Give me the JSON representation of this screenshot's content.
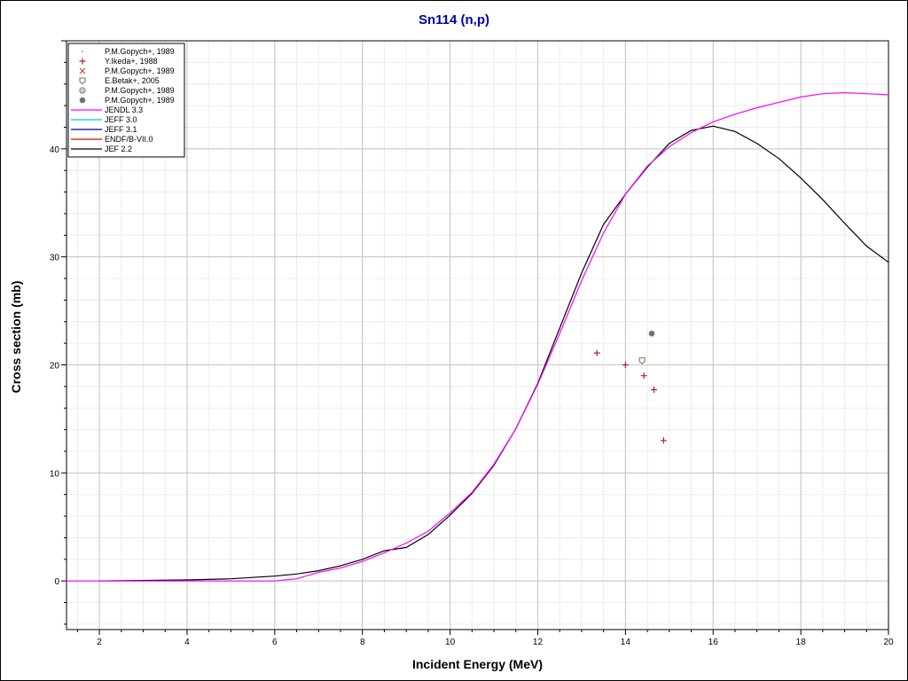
{
  "chart_data": {
    "type": "scatter",
    "title": "Sn114 (n,p)",
    "xlabel": "Incident Energy (MeV)",
    "ylabel": "Cross section (mb)",
    "xlim": [
      1.25,
      20
    ],
    "ylim": [
      -4.5,
      50
    ],
    "x_ticks": [
      "2",
      "4",
      "6",
      "8",
      "10",
      "12",
      "14",
      "16",
      "18",
      "20"
    ],
    "y_ticks": [
      "0",
      "10",
      "20",
      "30",
      "40"
    ],
    "grid": true,
    "legend_position": "top-left",
    "series": [
      {
        "name": "P.M.Gopych+, 1989",
        "kind": "points",
        "marker": "dot",
        "color": "#999999",
        "points": []
      },
      {
        "name": "Y.Ikeda+, 1988",
        "kind": "points",
        "marker": "plus",
        "color": "#aa2222",
        "points": [
          [
            13.35,
            21.1
          ],
          [
            14.0,
            20.0
          ],
          [
            14.42,
            19.0
          ],
          [
            14.65,
            17.7
          ],
          [
            14.87,
            13.0
          ]
        ]
      },
      {
        "name": "P.M.Gopych+, 1989",
        "kind": "points",
        "marker": "cross",
        "color": "#cc4444",
        "points": []
      },
      {
        "name": "E.Betak+, 2005",
        "kind": "points",
        "marker": "openbox",
        "color": "#777755",
        "points": [
          [
            14.38,
            20.4
          ]
        ]
      },
      {
        "name": "P.M.Gopych+, 1989",
        "kind": "points",
        "marker": "hatched",
        "color": "#888888",
        "points": []
      },
      {
        "name": "P.M.Gopych+, 1989",
        "kind": "points",
        "marker": "filled",
        "color": "#667777",
        "points": [
          [
            14.6,
            22.9
          ]
        ]
      },
      {
        "name": "JENDL 3.3",
        "kind": "line",
        "color": "#ff00ff",
        "points": [
          [
            1.25,
            0
          ],
          [
            6.0,
            0
          ],
          [
            6.5,
            0.2
          ],
          [
            7.0,
            0.8
          ],
          [
            7.5,
            1.2
          ],
          [
            8.0,
            1.8
          ],
          [
            8.5,
            2.6
          ],
          [
            9.0,
            3.5
          ],
          [
            9.5,
            4.6
          ],
          [
            10.0,
            6.3
          ],
          [
            10.5,
            8.2
          ],
          [
            11.0,
            10.8
          ],
          [
            11.5,
            14.1
          ],
          [
            12.0,
            18.2
          ],
          [
            12.5,
            22.9
          ],
          [
            13.0,
            27.8
          ],
          [
            13.5,
            32.2
          ],
          [
            14.0,
            35.8
          ],
          [
            14.5,
            38.4
          ],
          [
            15.0,
            40.2
          ],
          [
            15.5,
            41.5
          ],
          [
            16.0,
            42.5
          ],
          [
            16.5,
            43.2
          ],
          [
            17.0,
            43.8
          ],
          [
            17.5,
            44.3
          ],
          [
            18.0,
            44.8
          ],
          [
            18.5,
            45.1
          ],
          [
            19.0,
            45.2
          ],
          [
            19.5,
            45.1
          ],
          [
            20.0,
            45.0
          ]
        ]
      },
      {
        "name": "JEFF 3.0",
        "kind": "line",
        "color": "#00cccc",
        "points": []
      },
      {
        "name": "JEFF 3.1",
        "kind": "line",
        "color": "#000088",
        "points": []
      },
      {
        "name": "ENDF/B-VII.0",
        "kind": "line",
        "color": "#dd0000",
        "points": []
      },
      {
        "name": "JEF 2.2",
        "kind": "line",
        "color": "#000000",
        "points": [
          [
            2.0,
            0
          ],
          [
            2.5,
            0.02
          ],
          [
            3.0,
            0.05
          ],
          [
            4.0,
            0.1
          ],
          [
            5.0,
            0.2
          ],
          [
            6.0,
            0.45
          ],
          [
            6.5,
            0.65
          ],
          [
            7.0,
            0.95
          ],
          [
            7.5,
            1.4
          ],
          [
            8.0,
            2.0
          ],
          [
            8.5,
            2.8
          ],
          [
            9.0,
            3.1
          ],
          [
            9.5,
            4.3
          ],
          [
            10.0,
            6.1
          ],
          [
            10.5,
            8.1
          ],
          [
            11.0,
            10.7
          ],
          [
            11.5,
            14.1
          ],
          [
            12.0,
            18.3
          ],
          [
            12.5,
            23.4
          ],
          [
            13.0,
            28.5
          ],
          [
            13.5,
            33.0
          ],
          [
            14.0,
            35.8
          ],
          [
            14.5,
            38.3
          ],
          [
            15.0,
            40.5
          ],
          [
            15.5,
            41.7
          ],
          [
            16.0,
            42.1
          ],
          [
            16.5,
            41.6
          ],
          [
            17.0,
            40.5
          ],
          [
            17.5,
            39.1
          ],
          [
            18.0,
            37.3
          ],
          [
            18.5,
            35.3
          ],
          [
            19.0,
            33.1
          ],
          [
            19.5,
            31.0
          ],
          [
            20.0,
            29.5
          ]
        ]
      }
    ]
  }
}
